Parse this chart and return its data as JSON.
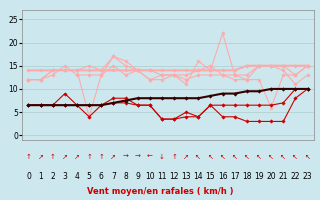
{
  "x": [
    0,
    1,
    2,
    3,
    4,
    5,
    6,
    7,
    8,
    9,
    10,
    11,
    12,
    13,
    14,
    15,
    16,
    17,
    18,
    19,
    20,
    21,
    22,
    23
  ],
  "series": [
    {
      "color": "#ffaaaa",
      "linewidth": 0.8,
      "marker": "D",
      "markersize": 1.8,
      "values": [
        12,
        12,
        14,
        14,
        14,
        15,
        14,
        17,
        15,
        14,
        14,
        13,
        13,
        13,
        14,
        15,
        13,
        12,
        12,
        15,
        15,
        15,
        13,
        15
      ]
    },
    {
      "color": "#ffaaaa",
      "linewidth": 0.8,
      "marker": "D",
      "markersize": 1.8,
      "values": [
        12,
        12,
        13,
        15,
        13,
        13,
        13,
        15,
        13,
        14,
        12,
        13,
        13,
        12,
        13,
        13,
        13,
        13,
        13,
        15,
        15,
        14,
        11,
        13
      ]
    },
    {
      "color": "#ffaaaa",
      "linewidth": 1.5,
      "marker": "D",
      "markersize": 1.8,
      "values": [
        14,
        14,
        14,
        14,
        14,
        14,
        14,
        14,
        14,
        14,
        14,
        14,
        14,
        14,
        14,
        14,
        14,
        14,
        15,
        15,
        15,
        15,
        15,
        15
      ]
    },
    {
      "color": "#ffaaaa",
      "linewidth": 0.8,
      "marker": "*",
      "markersize": 3.0,
      "values": [
        12,
        12,
        14,
        14,
        14,
        4,
        13,
        17,
        16,
        14,
        12,
        12,
        13,
        11,
        16,
        14,
        22,
        13,
        12,
        12,
        6,
        13,
        13,
        15
      ]
    },
    {
      "color": "#cc0000",
      "linewidth": 0.8,
      "marker": "D",
      "markersize": 1.8,
      "values": [
        6.5,
        6.5,
        6.5,
        9,
        6.5,
        4,
        6.5,
        8,
        8,
        6.5,
        6.5,
        3.5,
        3.5,
        5,
        4,
        6.5,
        6.5,
        6.5,
        6.5,
        6.5,
        6.5,
        7,
        10,
        10
      ]
    },
    {
      "color": "#cc0000",
      "linewidth": 0.8,
      "marker": "D",
      "markersize": 1.8,
      "values": [
        6.5,
        6.5,
        6.5,
        6.5,
        6.5,
        6.5,
        6.5,
        7,
        7,
        6.5,
        6.5,
        3.5,
        3.5,
        4,
        4,
        6.5,
        4,
        4,
        3,
        3,
        3,
        3,
        8,
        10
      ]
    },
    {
      "color": "#330000",
      "linewidth": 1.5,
      "marker": "D",
      "markersize": 1.8,
      "values": [
        6.5,
        6.5,
        6.5,
        6.5,
        6.5,
        6.5,
        6.5,
        7,
        7.5,
        8,
        8,
        8,
        8,
        8,
        8,
        8.5,
        9,
        9,
        9.5,
        9.5,
        10,
        10,
        10,
        10
      ]
    }
  ],
  "wind_arrows": [
    "↑",
    "↗",
    "↑",
    "↗",
    "↗",
    "↑",
    "↑",
    "↗",
    "→",
    "→",
    "←",
    "↓",
    "↑",
    "↗",
    "↖",
    "↖",
    "↖",
    "↖",
    "↖",
    "↖",
    "↖",
    "↖",
    "↖",
    "↖"
  ],
  "background_color": "#cce8ee",
  "grid_color": "#aacccc",
  "xlabel": "Vent moyen/en rafales ( km/h )",
  "xlabel_color": "#cc0000",
  "xlabel_fontsize": 6,
  "yticks": [
    0,
    5,
    10,
    15,
    20,
    25
  ],
  "ylim": [
    -1,
    27
  ],
  "xlim": [
    -0.5,
    23.5
  ],
  "tick_fontsize": 5.5,
  "arrow_fontsize": 5.0
}
